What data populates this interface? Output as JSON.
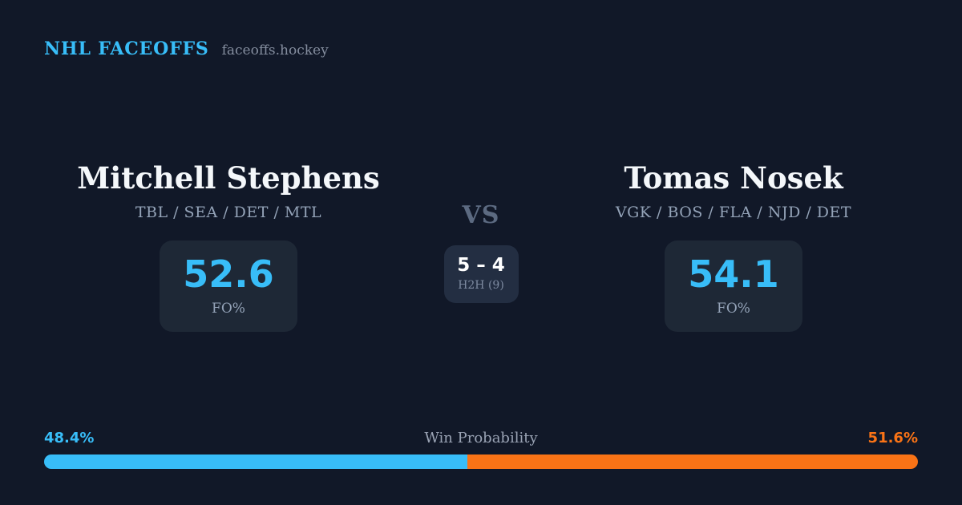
{
  "header": {
    "brand": "NHL FACEOFFS",
    "site": "faceoffs.hockey"
  },
  "matchup": {
    "left": {
      "name": "Mitchell Stephens",
      "teams": "TBL / SEA / DET / MTL",
      "fo_pct": "52.6",
      "fo_label": "FO%",
      "win_prob_label": "48.4%"
    },
    "right": {
      "name": "Tomas Nosek",
      "teams": "VGK / BOS / FLA / NJD / DET",
      "fo_pct": "54.1",
      "fo_label": "FO%",
      "win_prob_label": "51.6%"
    },
    "vs_label": "VS",
    "h2h": {
      "score": "5 – 4",
      "label": "H2H (9)"
    }
  },
  "win_probability": {
    "title": "Win Probability",
    "left_pct": 48.4,
    "right_pct": 51.6
  },
  "chart_data": {
    "type": "bar",
    "stacked": true,
    "title": "Win Probability",
    "categories": [
      "Win Probability"
    ],
    "series": [
      {
        "name": "Mitchell Stephens",
        "values": [
          48.4
        ],
        "color": "#38bdf8"
      },
      {
        "name": "Tomas Nosek",
        "values": [
          51.6
        ],
        "color": "#f97316"
      }
    ],
    "xlim": [
      0,
      100
    ],
    "annotations": [
      "48.4%",
      "51.6%"
    ],
    "legend": "none",
    "grid": false
  },
  "colors": {
    "background": "#111828",
    "stat_card": "#1e2836",
    "h2h_card": "#232e42",
    "accent_blue": "#38bdf8",
    "accent_orange": "#f97316",
    "name_text": "#f4f7fa",
    "muted_text": "#94a3b8",
    "vs_text": "#5c6a81"
  }
}
